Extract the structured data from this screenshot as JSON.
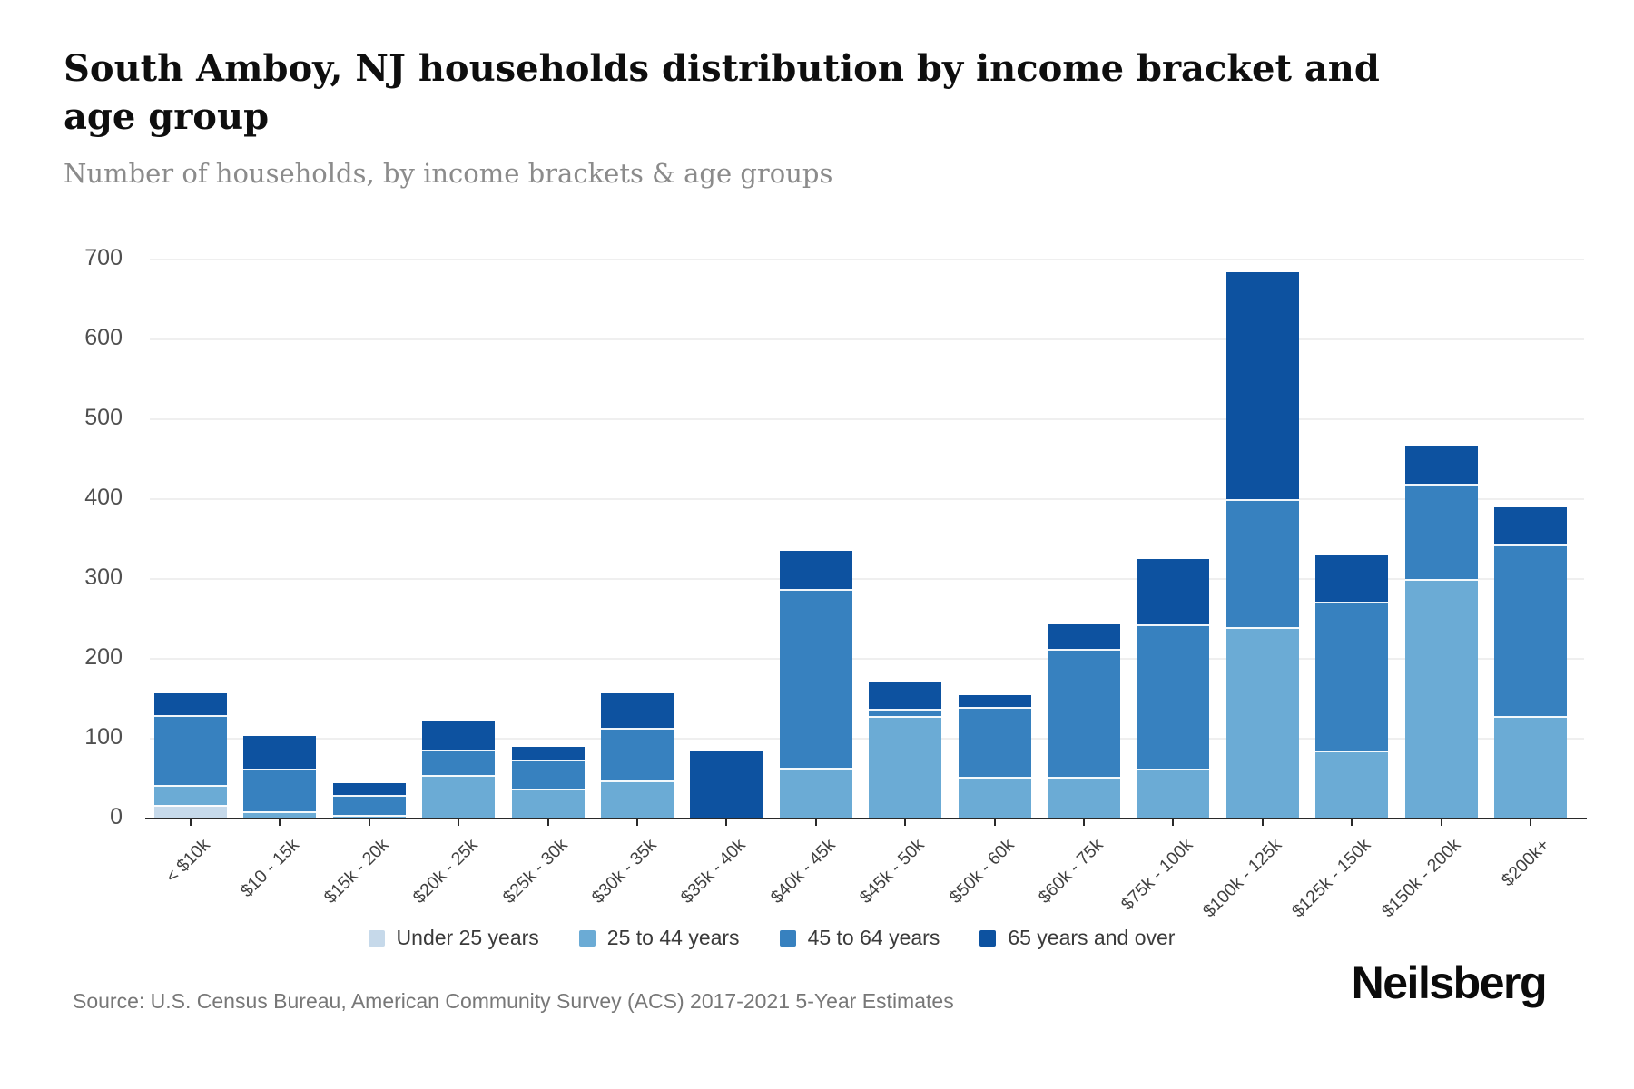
{
  "header": {
    "title": "South Amboy, NJ households distribution by income bracket and age group",
    "subtitle": "Number of households, by income brackets & age groups"
  },
  "chart_data": {
    "type": "bar",
    "stacked": true,
    "title": "South Amboy, NJ households distribution by income bracket and age group",
    "xlabel": "",
    "ylabel": "",
    "ylim": [
      0,
      700
    ],
    "yticks": [
      0,
      100,
      200,
      300,
      400,
      500,
      600,
      700
    ],
    "grid": true,
    "legend_position": "bottom",
    "categories": [
      "< $10k",
      "$10 - 15k",
      "$15k - 20k",
      "$20k - 25k",
      "$25k - 30k",
      "$30k - 35k",
      "$35k - 40k",
      "$40k - 45k",
      "$45k - 50k",
      "$50k - 60k",
      "$60k - 75k",
      "$75k - 100k",
      "$100k - 125k",
      "$125k - 150k",
      "$150k - 200k",
      "$200k+"
    ],
    "series": [
      {
        "name": "Under 25 years",
        "color": "#c6d9ea",
        "values": [
          17,
          0,
          0,
          0,
          0,
          0,
          0,
          0,
          0,
          0,
          0,
          0,
          0,
          0,
          0,
          0
        ]
      },
      {
        "name": "25 to 44 years",
        "color": "#6babd5",
        "values": [
          25,
          9,
          4,
          55,
          37,
          48,
          0,
          64,
          128,
          52,
          52,
          63,
          240,
          85,
          300,
          128
        ]
      },
      {
        "name": "45 to 64 years",
        "color": "#3781bf",
        "values": [
          88,
          54,
          26,
          31,
          37,
          66,
          0,
          224,
          10,
          88,
          161,
          180,
          160,
          187,
          119,
          215
        ]
      },
      {
        "name": "65 years and over",
        "color": "#0d52a0",
        "values": [
          27,
          41,
          14,
          36,
          16,
          43,
          85,
          47,
          33,
          15,
          30,
          82,
          284,
          58,
          47,
          47
        ]
      }
    ]
  },
  "y_axis": {
    "tick_labels": [
      "0",
      "100",
      "200",
      "300",
      "400",
      "500",
      "600",
      "700"
    ]
  },
  "legend": {
    "items": [
      "Under 25 years",
      "25 to 44 years",
      "45 to 64 years",
      "65 years and over"
    ]
  },
  "footer": {
    "source": "Source: U.S. Census Bureau, American Community Survey (ACS) 2017-2021 5-Year Estimates",
    "logo": "Neilsberg"
  }
}
